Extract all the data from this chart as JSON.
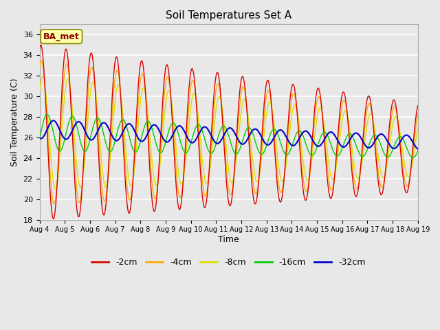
{
  "title": "Soil Temperatures Set A",
  "xlabel": "Time",
  "ylabel": "Soil Temperature (C)",
  "ylim": [
    18,
    37
  ],
  "xlim_days": [
    4,
    19
  ],
  "annotation": "BA_met",
  "colors": {
    "-2cm": "#dd0000",
    "-4cm": "#ffaa00",
    "-8cm": "#dddd00",
    "-16cm": "#00cc00",
    "-32cm": "#0000cc"
  },
  "legend_labels": [
    "-2cm",
    "-4cm",
    "-8cm",
    "-16cm",
    "-32cm"
  ],
  "background_color": "#e8e8e8",
  "plot_bg_color": "#e8e8e8",
  "grid_color": "#ffffff",
  "tick_label_dates": [
    "Aug 4",
    "Aug 5",
    "Aug 6",
    "Aug 7",
    "Aug 8",
    "Aug 9",
    "Aug 10",
    "Aug 11",
    "Aug 12",
    "Aug 13",
    "Aug 14",
    "Aug 15",
    "Aug 16",
    "Aug 17",
    "Aug 18",
    "Aug 19"
  ]
}
